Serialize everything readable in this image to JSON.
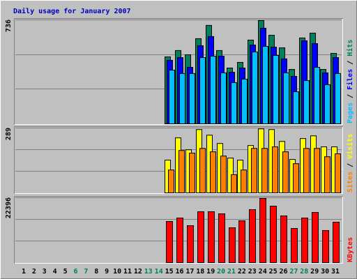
{
  "chart_data": [
    {
      "type": "bar",
      "title": "Daily usage for January 2007",
      "ylim": [
        0,
        736
      ],
      "yticks": [
        736
      ],
      "legend_separator": " / ",
      "series": [
        {
          "name": "Hits",
          "color": "#00805c",
          "values": [
            null,
            null,
            null,
            null,
            null,
            null,
            null,
            null,
            null,
            null,
            null,
            null,
            null,
            null,
            474,
            519,
            489,
            603,
            697,
            519,
            395,
            435,
            593,
            731,
            627,
            538,
            385,
            608,
            642,
            385,
            499
          ]
        },
        {
          "name": "Files",
          "color": "#0000ff",
          "values": [
            null,
            null,
            null,
            null,
            null,
            null,
            null,
            null,
            null,
            null,
            null,
            null,
            null,
            null,
            450,
            469,
            400,
            553,
            618,
            479,
            365,
            395,
            558,
            677,
            543,
            460,
            336,
            588,
            568,
            361,
            469
          ]
        },
        {
          "name": "Pages",
          "color": "#00c0ff",
          "values": [
            null,
            null,
            null,
            null,
            null,
            null,
            null,
            null,
            null,
            null,
            null,
            null,
            null,
            null,
            380,
            356,
            356,
            469,
            479,
            361,
            292,
            316,
            509,
            548,
            484,
            361,
            227,
            306,
            400,
            277,
            356
          ]
        }
      ]
    },
    {
      "type": "bar",
      "ylim": [
        0,
        289
      ],
      "yticks": [
        289
      ],
      "legend_separator": " / ",
      "series": [
        {
          "name": "Visits",
          "color": "#ffff00",
          "values": [
            null,
            null,
            null,
            null,
            null,
            null,
            null,
            null,
            null,
            null,
            null,
            null,
            null,
            null,
            146,
            245,
            192,
            282,
            257,
            220,
            155,
            146,
            211,
            285,
            282,
            229,
            149,
            242,
            254,
            205,
            205
          ]
        },
        {
          "name": "Sites",
          "color": "#ff8000",
          "values": [
            null,
            null,
            null,
            null,
            null,
            null,
            null,
            null,
            null,
            null,
            null,
            null,
            null,
            null,
            102,
            189,
            177,
            198,
            183,
            164,
            81,
            102,
            198,
            198,
            205,
            183,
            130,
            198,
            198,
            161,
            174
          ]
        }
      ]
    },
    {
      "type": "bar",
      "ylim": [
        0,
        22396
      ],
      "yticks": [
        22396
      ],
      "categories": [
        1,
        2,
        3,
        4,
        5,
        6,
        7,
        8,
        9,
        10,
        11,
        12,
        13,
        14,
        15,
        16,
        17,
        18,
        19,
        20,
        21,
        22,
        23,
        24,
        25,
        26,
        27,
        28,
        29,
        30,
        31
      ],
      "category_colors": [
        "#000000",
        "#000000",
        "#000000",
        "#000000",
        "#000000",
        "#00805c",
        "#00805c",
        "#000000",
        "#000000",
        "#000000",
        "#000000",
        "#000000",
        "#00805c",
        "#00805c",
        "#000000",
        "#000000",
        "#000000",
        "#000000",
        "#000000",
        "#00805c",
        "#00805c",
        "#000000",
        "#000000",
        "#000000",
        "#000000",
        "#000000",
        "#00805c",
        "#00805c",
        "#000000",
        "#000000",
        "#000000"
      ],
      "series": [
        {
          "name": "KBytes",
          "color": "#ff0000",
          "values": [
            null,
            null,
            null,
            null,
            null,
            null,
            null,
            null,
            null,
            null,
            null,
            null,
            null,
            null,
            14207,
            15411,
            12762,
            17578,
            17578,
            16856,
            12040,
            14448,
            18301,
            22155,
            19504,
            16133,
            11799,
            15411,
            17338,
            11077,
            13966
          ]
        }
      ]
    }
  ]
}
